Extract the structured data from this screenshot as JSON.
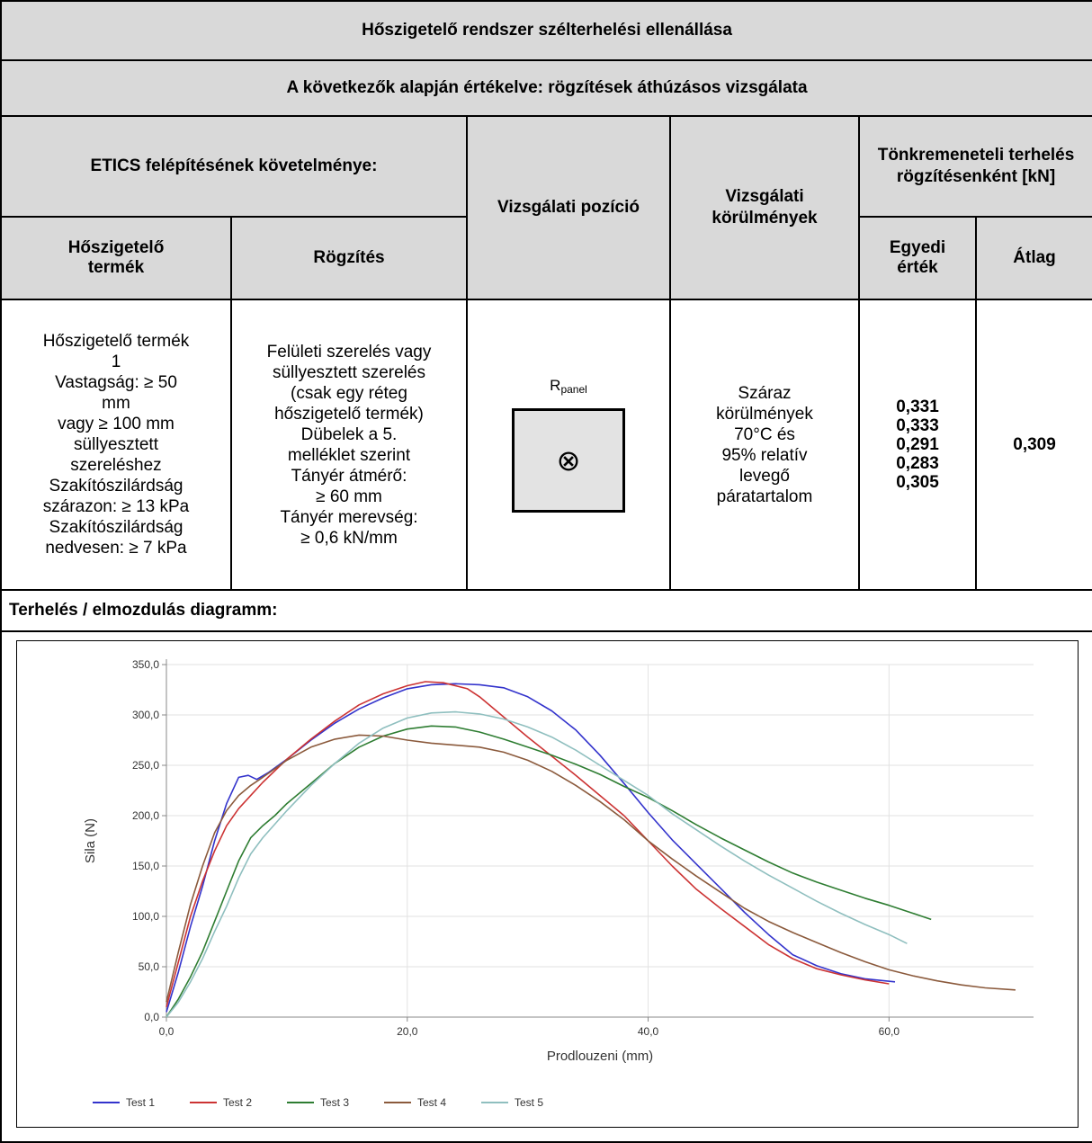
{
  "title": "Hőszigetelő rendszer szélterhelési ellenállása",
  "subtitle": "A következők alapján értékelve: rögzítések áthúzásos vizsgálata",
  "headers": {
    "requirement": "ETICS felépítésének követelménye:",
    "test_position": "Vizsgálati pozíció",
    "test_conditions": "Vizsgálati körülmények",
    "failure_load": "Tönkremeneteli terhelés rögzítésenként [kN]",
    "insulation_product": "Hőszigetelő termék",
    "fixing": "Rögzítés",
    "individual": "Egyedi érték",
    "average": "Átlag"
  },
  "row": {
    "insulation_lines": [
      "Hőszigetelő termék",
      "1",
      "Vastagság: ≥ 50",
      "mm",
      "vagy ≥ 100 mm",
      "süllyesztett",
      "szereléshez",
      "Szakítószilárdság",
      "szárazon: ≥ 13 kPa",
      "Szakítószilárdság",
      "nedvesen: ≥ 7 kPa"
    ],
    "fixing_lines": [
      "Felületi szerelés vagy",
      "süllyesztett szerelés",
      "(csak egy réteg",
      "hőszigetelő termék)",
      "Dübelek a 5.",
      "melléklet szerint",
      "Tányér átmérő:",
      "≥ 60 mm",
      "Tányér merevség:",
      "≥ 0,6 kN/mm"
    ],
    "position_label": "R",
    "position_sub": "panel",
    "position_symbol": "⊗",
    "conditions_lines": [
      "Száraz",
      "körülmények",
      "70°C és",
      "95% relatív",
      "levegő",
      "páratartalom"
    ],
    "individual_values": [
      "0,331",
      "0,333",
      "0,291",
      "0,283",
      "0,305"
    ],
    "average": "0,309"
  },
  "diagram_title": "Terhelés / elmozdulás diagramm:",
  "chart_data": {
    "type": "line",
    "xlabel": "Prodlouzeni (mm)",
    "ylabel": "Sila (N)",
    "xlim": [
      0,
      72
    ],
    "ylim": [
      0,
      350
    ],
    "xticks": [
      "0,0",
      "20,0",
      "40,0",
      "60,0"
    ],
    "xtick_values": [
      0,
      20,
      40,
      60
    ],
    "yticks": [
      "0,0",
      "50,0",
      "100,0",
      "150,0",
      "200,0",
      "250,0",
      "300,0",
      "350,0"
    ],
    "ytick_values": [
      0,
      50,
      100,
      150,
      200,
      250,
      300,
      350
    ],
    "grid": true,
    "legend_position": "bottom-left",
    "series": [
      {
        "name": "Test 1",
        "color": "#3333cc",
        "x": [
          0,
          1,
          2,
          3,
          4,
          5,
          6,
          6.8,
          7.5,
          8.5,
          10,
          12,
          14,
          16,
          18,
          20,
          22,
          24,
          26,
          28,
          30,
          32,
          34,
          36,
          38,
          40,
          42,
          44,
          46,
          48,
          50,
          52,
          54,
          56,
          58,
          60.5
        ],
        "y": [
          5,
          45,
          90,
          130,
          175,
          212,
          238,
          240,
          236,
          243,
          256,
          275,
          292,
          306,
          317,
          326,
          330,
          331,
          330,
          327,
          318,
          304,
          285,
          260,
          232,
          203,
          176,
          152,
          128,
          104,
          82,
          62,
          51,
          43,
          38,
          35
        ]
      },
      {
        "name": "Test 2",
        "color": "#cc3333",
        "x": [
          0,
          1,
          2,
          3,
          4,
          5,
          6,
          7,
          8,
          10,
          12,
          14,
          16,
          18,
          20,
          21.5,
          23,
          25,
          26,
          28,
          30,
          32,
          34,
          36,
          38,
          40,
          42,
          44,
          46,
          48,
          50,
          52,
          54,
          56,
          58,
          60
        ],
        "y": [
          10,
          55,
          100,
          135,
          165,
          190,
          207,
          220,
          233,
          256,
          276,
          294,
          310,
          321,
          329,
          333,
          332,
          326,
          318,
          298,
          278,
          259,
          240,
          220,
          200,
          175,
          150,
          127,
          108,
          90,
          72,
          58,
          48,
          42,
          37,
          33
        ]
      },
      {
        "name": "Test 3",
        "color": "#2e7d32",
        "x": [
          0,
          1,
          2,
          3,
          4,
          5,
          6,
          7,
          8,
          9,
          10,
          12,
          14,
          16,
          18,
          20,
          22,
          24,
          26,
          28,
          30,
          32,
          34,
          36,
          38,
          40,
          42,
          44,
          46,
          48,
          50,
          52,
          54,
          56,
          58,
          60,
          62,
          63.5
        ],
        "y": [
          0,
          18,
          40,
          65,
          95,
          125,
          155,
          178,
          190,
          200,
          212,
          232,
          252,
          268,
          279,
          286,
          289,
          288,
          283,
          276,
          268,
          260,
          251,
          241,
          229,
          218,
          205,
          191,
          178,
          166,
          154,
          143,
          134,
          126,
          118,
          111,
          103,
          97
        ]
      },
      {
        "name": "Test 4",
        "color": "#8b5a3c",
        "x": [
          0,
          1,
          2,
          3,
          4,
          5,
          6,
          7,
          8,
          10,
          12,
          14,
          16,
          18,
          20,
          22,
          24,
          26,
          28,
          30,
          32,
          34,
          36,
          38,
          40,
          42,
          44,
          46,
          48,
          50,
          52,
          54,
          56,
          58,
          60,
          62,
          64,
          66,
          68,
          70.5
        ],
        "y": [
          15,
          65,
          112,
          150,
          183,
          205,
          220,
          230,
          238,
          255,
          268,
          276,
          280,
          279,
          275,
          272,
          270,
          268,
          263,
          255,
          244,
          230,
          214,
          196,
          175,
          157,
          140,
          124,
          108,
          95,
          84,
          74,
          64,
          55,
          47,
          41,
          36,
          32,
          29,
          27
        ]
      },
      {
        "name": "Test 5",
        "color": "#8fbfbf",
        "x": [
          0,
          1,
          2,
          3,
          4,
          5,
          6,
          7,
          8,
          10,
          12,
          14,
          16,
          18,
          20,
          22,
          24,
          26,
          28,
          30,
          32,
          34,
          36,
          38,
          40,
          42,
          44,
          46,
          48,
          50,
          52,
          54,
          56,
          58,
          60,
          61.5
        ],
        "y": [
          0,
          15,
          35,
          58,
          85,
          110,
          138,
          162,
          178,
          205,
          230,
          252,
          272,
          287,
          297,
          302,
          303,
          301,
          296,
          288,
          278,
          265,
          250,
          235,
          220,
          202,
          186,
          170,
          155,
          141,
          128,
          115,
          103,
          92,
          82,
          73
        ]
      }
    ]
  }
}
